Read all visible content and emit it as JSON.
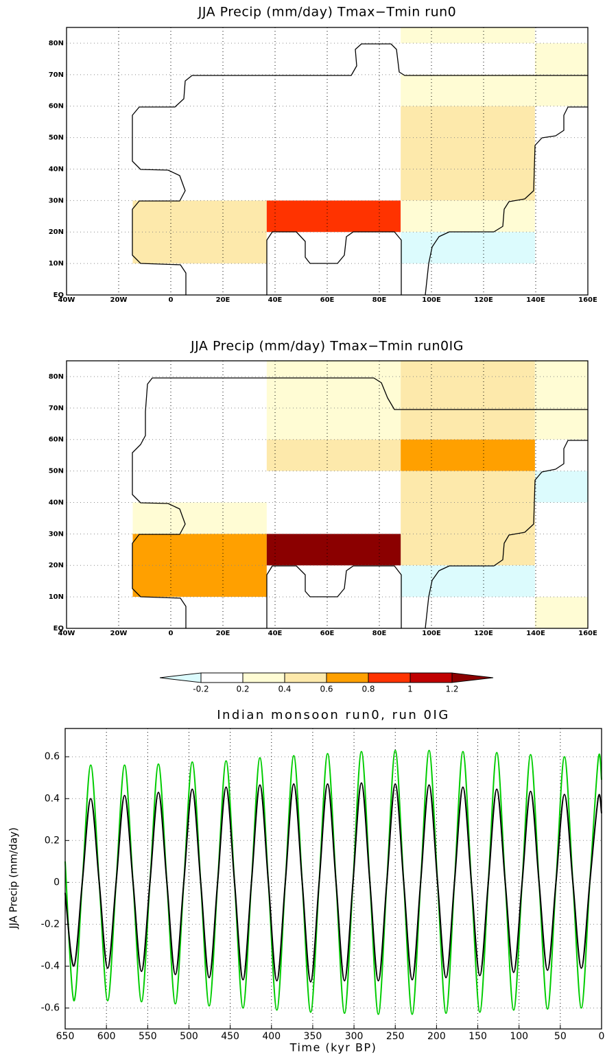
{
  "chart_data": [
    {
      "type": "map",
      "title": "JJA Precip (mm/day) Tmax−Tmin run0",
      "xlim": [
        -40,
        160
      ],
      "ylim": [
        0,
        85
      ],
      "xticks": [
        {
          "value": -40,
          "label": "40W"
        },
        {
          "value": -20,
          "label": "20W"
        },
        0,
        {
          "value": 20,
          "label": "20E"
        },
        {
          "value": 40,
          "label": "40E"
        },
        {
          "value": 60,
          "label": "60E"
        },
        {
          "value": 80,
          "label": "80E"
        },
        {
          "value": 100,
          "label": "100E"
        },
        {
          "value": 120,
          "label": "120E"
        },
        {
          "value": 140,
          "label": "140E"
        },
        {
          "value": 160,
          "label": "160E"
        }
      ],
      "yticks": [
        {
          "value": 0,
          "label": "EQ"
        },
        {
          "value": 10,
          "label": "10N"
        },
        {
          "value": 20,
          "label": "20N"
        },
        {
          "value": 30,
          "label": "30N"
        },
        {
          "value": 40,
          "label": "40N"
        },
        {
          "value": 50,
          "label": "50N"
        },
        {
          "value": 60,
          "label": "60N"
        },
        {
          "value": 70,
          "label": "70N"
        },
        {
          "value": 80,
          "label": "80N"
        }
      ],
      "grid": true,
      "cells": [
        {
          "lon": [
            88.2,
            139.7
          ],
          "lat": [
            80,
            85
          ],
          "value": 0.3
        },
        {
          "lon": [
            139.7,
            160
          ],
          "lat": [
            70,
            80
          ],
          "value": 0.3
        },
        {
          "lon": [
            88.2,
            160
          ],
          "lat": [
            60,
            70
          ],
          "value": 0.3
        },
        {
          "lon": [
            88.2,
            139.7
          ],
          "lat": [
            30,
            60
          ],
          "value": 0.5
        },
        {
          "lon": [
            -14.6,
            36.8
          ],
          "lat": [
            10,
            30
          ],
          "value": 0.5
        },
        {
          "lon": [
            36.8,
            88.2
          ],
          "lat": [
            20,
            30
          ],
          "value": 0.9
        },
        {
          "lon": [
            88.2,
            139.7
          ],
          "lat": [
            20,
            30
          ],
          "value": 0.3
        },
        {
          "lon": [
            88.2,
            139.7
          ],
          "lat": [
            10,
            20
          ],
          "value": -0.3
        }
      ]
    },
    {
      "type": "map",
      "title": "JJA Precip (mm/day) Tmax−Tmin run0IG",
      "xlim": [
        -40,
        160
      ],
      "ylim": [
        0,
        85
      ],
      "xticks": [
        {
          "value": -40,
          "label": "40W"
        },
        {
          "value": -20,
          "label": "20W"
        },
        0,
        {
          "value": 20,
          "label": "20E"
        },
        {
          "value": 40,
          "label": "40E"
        },
        {
          "value": 60,
          "label": "60E"
        },
        {
          "value": 80,
          "label": "80E"
        },
        {
          "value": 100,
          "label": "100E"
        },
        {
          "value": 120,
          "label": "120E"
        },
        {
          "value": 140,
          "label": "140E"
        },
        {
          "value": 160,
          "label": "160E"
        }
      ],
      "yticks": [
        {
          "value": 0,
          "label": "EQ"
        },
        {
          "value": 10,
          "label": "10N"
        },
        {
          "value": 20,
          "label": "20N"
        },
        {
          "value": 30,
          "label": "30N"
        },
        {
          "value": 40,
          "label": "40N"
        },
        {
          "value": 50,
          "label": "50N"
        },
        {
          "value": 60,
          "label": "60N"
        },
        {
          "value": 70,
          "label": "70N"
        },
        {
          "value": 80,
          "label": "80N"
        }
      ],
      "grid": true,
      "cells": [
        {
          "lon": [
            36.8,
            88.2
          ],
          "lat": [
            60,
            85
          ],
          "value": 0.3
        },
        {
          "lon": [
            88.2,
            139.7
          ],
          "lat": [
            60,
            85
          ],
          "value": 0.5
        },
        {
          "lon": [
            139.7,
            160
          ],
          "lat": [
            60,
            85
          ],
          "value": 0.3
        },
        {
          "lon": [
            36.8,
            88.2
          ],
          "lat": [
            50,
            60
          ],
          "value": 0.5
        },
        {
          "lon": [
            88.2,
            139.7
          ],
          "lat": [
            50,
            60
          ],
          "value": 0.7
        },
        {
          "lon": [
            139.7,
            160
          ],
          "lat": [
            40,
            50
          ],
          "value": -0.3
        },
        {
          "lon": [
            88.2,
            139.7
          ],
          "lat": [
            20,
            50
          ],
          "value": 0.5
        },
        {
          "lon": [
            -14.6,
            36.8
          ],
          "lat": [
            30,
            40
          ],
          "value": 0.3
        },
        {
          "lon": [
            -14.6,
            36.8
          ],
          "lat": [
            10,
            30
          ],
          "value": 0.7
        },
        {
          "lon": [
            36.8,
            88.2
          ],
          "lat": [
            20,
            30
          ],
          "value": 1.3
        },
        {
          "lon": [
            88.2,
            139.7
          ],
          "lat": [
            10,
            20
          ],
          "value": -0.3
        },
        {
          "lon": [
            139.7,
            160
          ],
          "lat": [
            0,
            10
          ],
          "value": 0.3
        }
      ]
    },
    {
      "type": "colorbar",
      "levels": [
        -0.2,
        0.2,
        0.4,
        0.6,
        0.8,
        1,
        1.2
      ],
      "colors": [
        "#dcfbfd",
        "#ffffff",
        "#fffcd4",
        "#fde9ab",
        "#ffa000",
        "#ff3300",
        "#c00000",
        "#8b0000"
      ]
    },
    {
      "type": "line",
      "title": "Indian monsoon run0, run 0IG",
      "x_label": "Time (kyr BP)",
      "y_label": "JJA Precip (mm/day)",
      "xlim": [
        650,
        0
      ],
      "ylim": [
        -0.7,
        0.735
      ],
      "xticks": [
        650,
        600,
        550,
        500,
        450,
        400,
        350,
        300,
        250,
        200,
        150,
        100,
        50,
        0
      ],
      "yticks": [
        -0.6,
        -0.4,
        -0.2,
        0,
        0.2,
        0.4,
        0.6
      ],
      "grid": true,
      "x": [
        650,
        639.5,
        629.25,
        619,
        608.75,
        598.5,
        588.25,
        578,
        567.75,
        557.5,
        547.25,
        537,
        526.75,
        516.5,
        506.25,
        496,
        485.75,
        475.5,
        465.25,
        455,
        444.75,
        434.5,
        424.25,
        414,
        403.75,
        393.5,
        383.25,
        373,
        362.75,
        352.5,
        342.25,
        332,
        321.75,
        311.5,
        301.25,
        291,
        280.75,
        270.5,
        260.25,
        250,
        239.75,
        229.5,
        219.25,
        209,
        198.75,
        188.5,
        178.25,
        168,
        157.75,
        147.5,
        137.25,
        127,
        116.75,
        106.5,
        96.25,
        86,
        75.75,
        65.5,
        55.25,
        45,
        34.75,
        24.5,
        14.25,
        4,
        0
      ],
      "series": [
        {
          "color": "#00cc00",
          "values": [
            0.1,
            -0.565,
            0,
            0.56,
            0,
            -0.565,
            0,
            0.56,
            0,
            -0.57,
            0,
            0.565,
            0,
            -0.58,
            0,
            0.575,
            0,
            -0.59,
            0,
            0.58,
            0,
            -0.6,
            0,
            0.595,
            0,
            -0.61,
            0,
            0.605,
            0,
            -0.62,
            0,
            0.615,
            0,
            -0.625,
            0,
            0.625,
            0,
            -0.63,
            0,
            0.63,
            0,
            -0.63,
            0,
            0.63,
            0,
            -0.625,
            0,
            0.625,
            0,
            -0.62,
            0,
            0.62,
            0,
            -0.61,
            0,
            0.61,
            0,
            -0.605,
            0,
            0.6,
            0,
            -0.6,
            0,
            0.59,
            0.49
          ]
        },
        {
          "color": "#000000",
          "values": [
            -0.05,
            -0.4,
            0,
            0.4,
            0,
            -0.41,
            0,
            0.415,
            0,
            -0.425,
            0,
            0.43,
            0,
            -0.44,
            0,
            0.445,
            0,
            -0.455,
            0,
            0.455,
            0,
            -0.465,
            0,
            0.465,
            0,
            -0.47,
            0,
            0.47,
            0,
            -0.475,
            0,
            0.47,
            0,
            -0.47,
            0,
            0.475,
            0,
            -0.47,
            0,
            0.47,
            0,
            -0.465,
            0,
            0.465,
            0,
            -0.455,
            0,
            0.455,
            0,
            -0.445,
            0,
            0.445,
            0,
            -0.43,
            0,
            0.435,
            0,
            -0.42,
            0,
            0.42,
            0,
            -0.41,
            0,
            0.405,
            0.33
          ]
        }
      ]
    }
  ]
}
